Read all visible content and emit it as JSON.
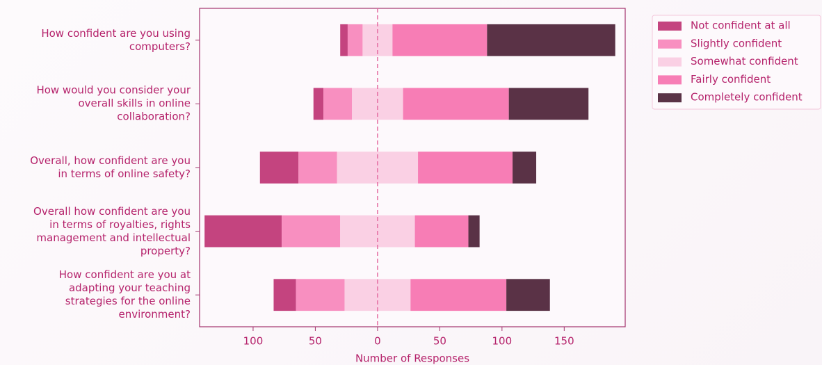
{
  "chart_data": {
    "type": "diverging_bar",
    "xlabel": "Number of Responses",
    "categories": [
      "How confident are you using\ncomputers?",
      "How would you consider your\noverall skills in online\ncollaboration?",
      "Overall, how confident are you\nin terms of online safety?",
      "Overall how confident are you\nin terms of royalties, rights\nmanagement and intellectual\nproperty?",
      "How confident are you at\nadapting your teaching\nstrategies for the online\nenvironment?"
    ],
    "series": [
      {
        "name": "Not confident at all",
        "color": "#c4447f",
        "values": [
          6,
          8,
          31,
          62,
          18
        ]
      },
      {
        "name": "Slightly confident",
        "color": "#f88fc0",
        "values": [
          12,
          23,
          31,
          47,
          39
        ]
      },
      {
        "name": "Somewhat confident",
        "color": "#fad0e4",
        "values": [
          24,
          41,
          65,
          60,
          53
        ]
      },
      {
        "name": "Fairly confident",
        "color": "#f77db5",
        "values": [
          76,
          85,
          76,
          43,
          77
        ]
      },
      {
        "name": "Completely confident",
        "color": "#5a3246",
        "values": [
          103,
          64,
          19,
          9,
          35
        ]
      }
    ],
    "centered_series": "Somewhat confident",
    "xlim": [
      -143,
      199
    ],
    "xticks": [
      {
        "value": -100,
        "label": "100"
      },
      {
        "value": -50,
        "label": "50"
      },
      0,
      50,
      100,
      150
    ],
    "legend": "outside-upper-right"
  }
}
